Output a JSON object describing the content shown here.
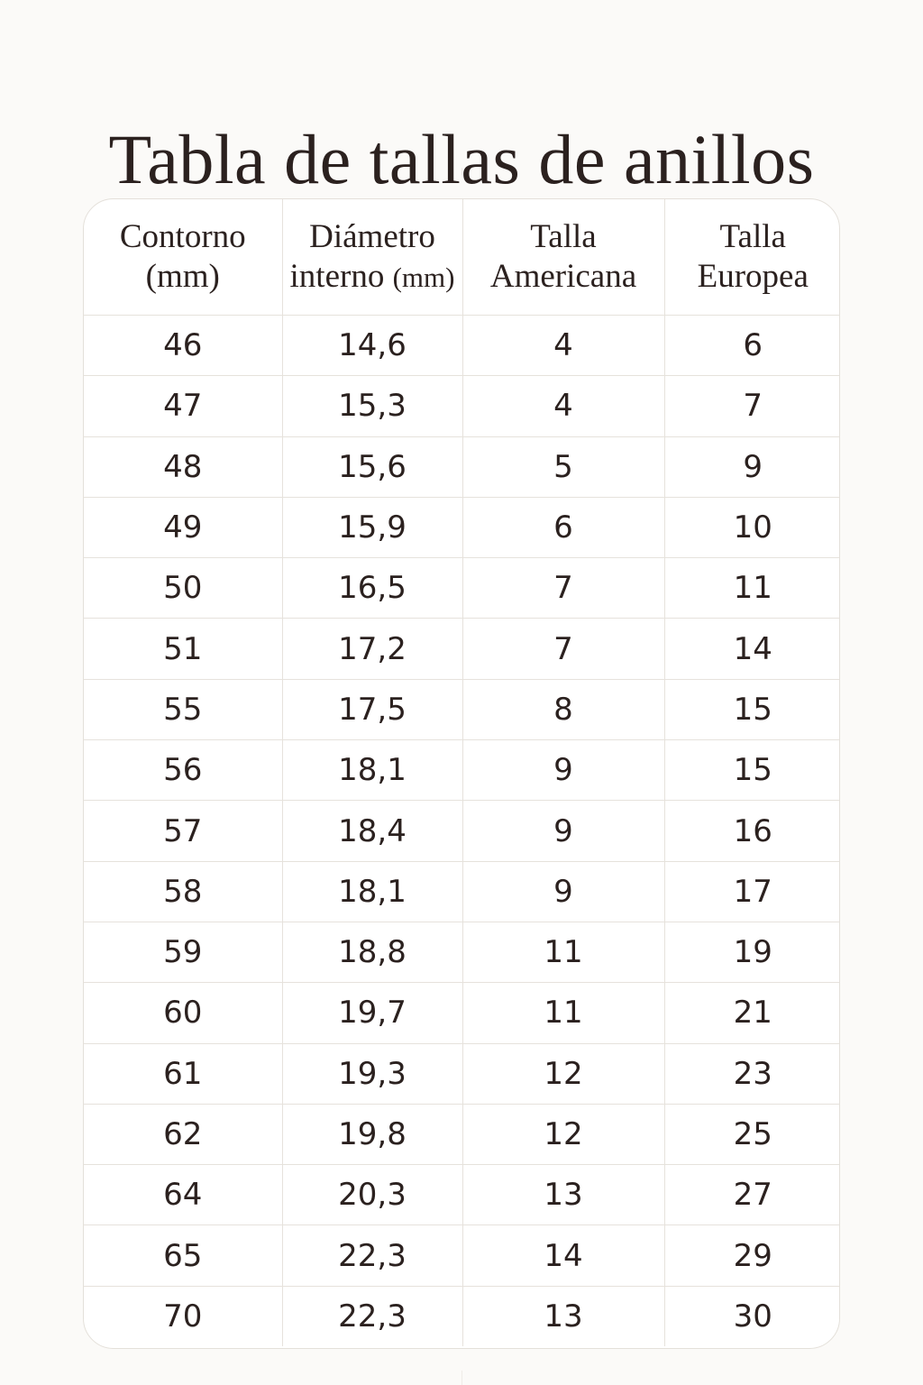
{
  "title": "Tabla de tallas de anillos",
  "chart_data": {
    "type": "table",
    "title": "Tabla de tallas de anillos",
    "columns": [
      {
        "lines": [
          "Contorno",
          "(mm)"
        ]
      },
      {
        "lines": [
          "Diámetro",
          "interno",
          "(mm)"
        ]
      },
      {
        "lines": [
          "Talla",
          "Americana"
        ]
      },
      {
        "lines": [
          "Talla",
          "Europea"
        ]
      }
    ],
    "rows": [
      [
        "46",
        "14,6",
        "4",
        "6"
      ],
      [
        "47",
        "15,3",
        "4",
        "7"
      ],
      [
        "48",
        "15,6",
        "5",
        "9"
      ],
      [
        "49",
        "15,9",
        "6",
        "10"
      ],
      [
        "50",
        "16,5",
        "7",
        "11"
      ],
      [
        "51",
        "17,2",
        "7",
        "14"
      ],
      [
        "55",
        "17,5",
        "8",
        "15"
      ],
      [
        "56",
        "18,1",
        "9",
        "15"
      ],
      [
        "57",
        "18,4",
        "9",
        "16"
      ],
      [
        "58",
        "18,1",
        "9",
        "17"
      ],
      [
        "59",
        "18,8",
        "11",
        "19"
      ],
      [
        "60",
        "19,7",
        "11",
        "21"
      ],
      [
        "61",
        "19,3",
        "12",
        "23"
      ],
      [
        "62",
        "19,8",
        "12",
        "25"
      ],
      [
        "64",
        "20,3",
        "13",
        "27"
      ],
      [
        "65",
        "22,3",
        "14",
        "29"
      ],
      [
        "70",
        "22,3",
        "13",
        "30"
      ]
    ]
  },
  "colors": {
    "background": "#fbfaf8",
    "text": "#2b211f",
    "grid": "#e6e2dc"
  }
}
